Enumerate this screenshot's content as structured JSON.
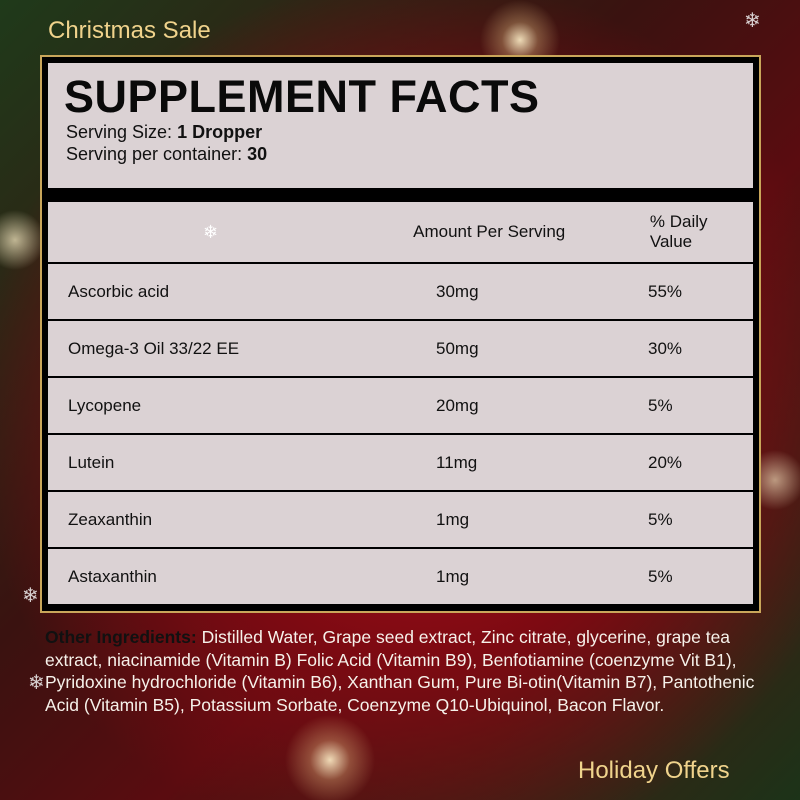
{
  "banner": {
    "top_left": "Christmas Sale",
    "bottom_right": "Holiday Offers"
  },
  "label": {
    "title": "SUPPLEMENT FACTS",
    "serving_size_label": "Serving Size:",
    "serving_size_value": "1 Dropper",
    "servings_label": "Serving per container:",
    "servings_value": "30",
    "columns": {
      "amount": "Amount Per Serving",
      "daily_value": "% Daily Value"
    },
    "rows": [
      {
        "name": "Ascorbic acid",
        "amount": "30mg",
        "dv": "55%"
      },
      {
        "name": "Omega-3 Oil 33/22 EE",
        "amount": "50mg",
        "dv": "30%"
      },
      {
        "name": "Lycopene",
        "amount": "20mg",
        "dv": "5%"
      },
      {
        "name": "Lutein",
        "amount": "11mg",
        "dv": "20%"
      },
      {
        "name": "Zeaxanthin",
        "amount": "1mg",
        "dv": "5%"
      },
      {
        "name": "Astaxanthin",
        "amount": "1mg",
        "dv": "5%"
      }
    ]
  },
  "other_ingredients": {
    "label": "Other Ingredients:",
    "text": "Distilled Water, Grape seed extract, Zinc citrate, glycerine, grape tea extract, niacinamide (Vitamin B) Folic Acid (Vitamin B9), Benfotiamine (coenzyme Vit B1), Pyridoxine hydrochloride (Vitamin B6), Xanthan Gum, Pure Bi-otin(Vitamin B7), Pantothenic Acid (Vitamin B5), Potassium Sorbate, Coenzyme Q10-Ubiquinol, Bacon Flavor."
  },
  "icons": [
    "snowflake-icon"
  ],
  "colors": {
    "gold": "#f0d38c",
    "frame": "#c9a65a",
    "panel": "#eee4e6"
  }
}
